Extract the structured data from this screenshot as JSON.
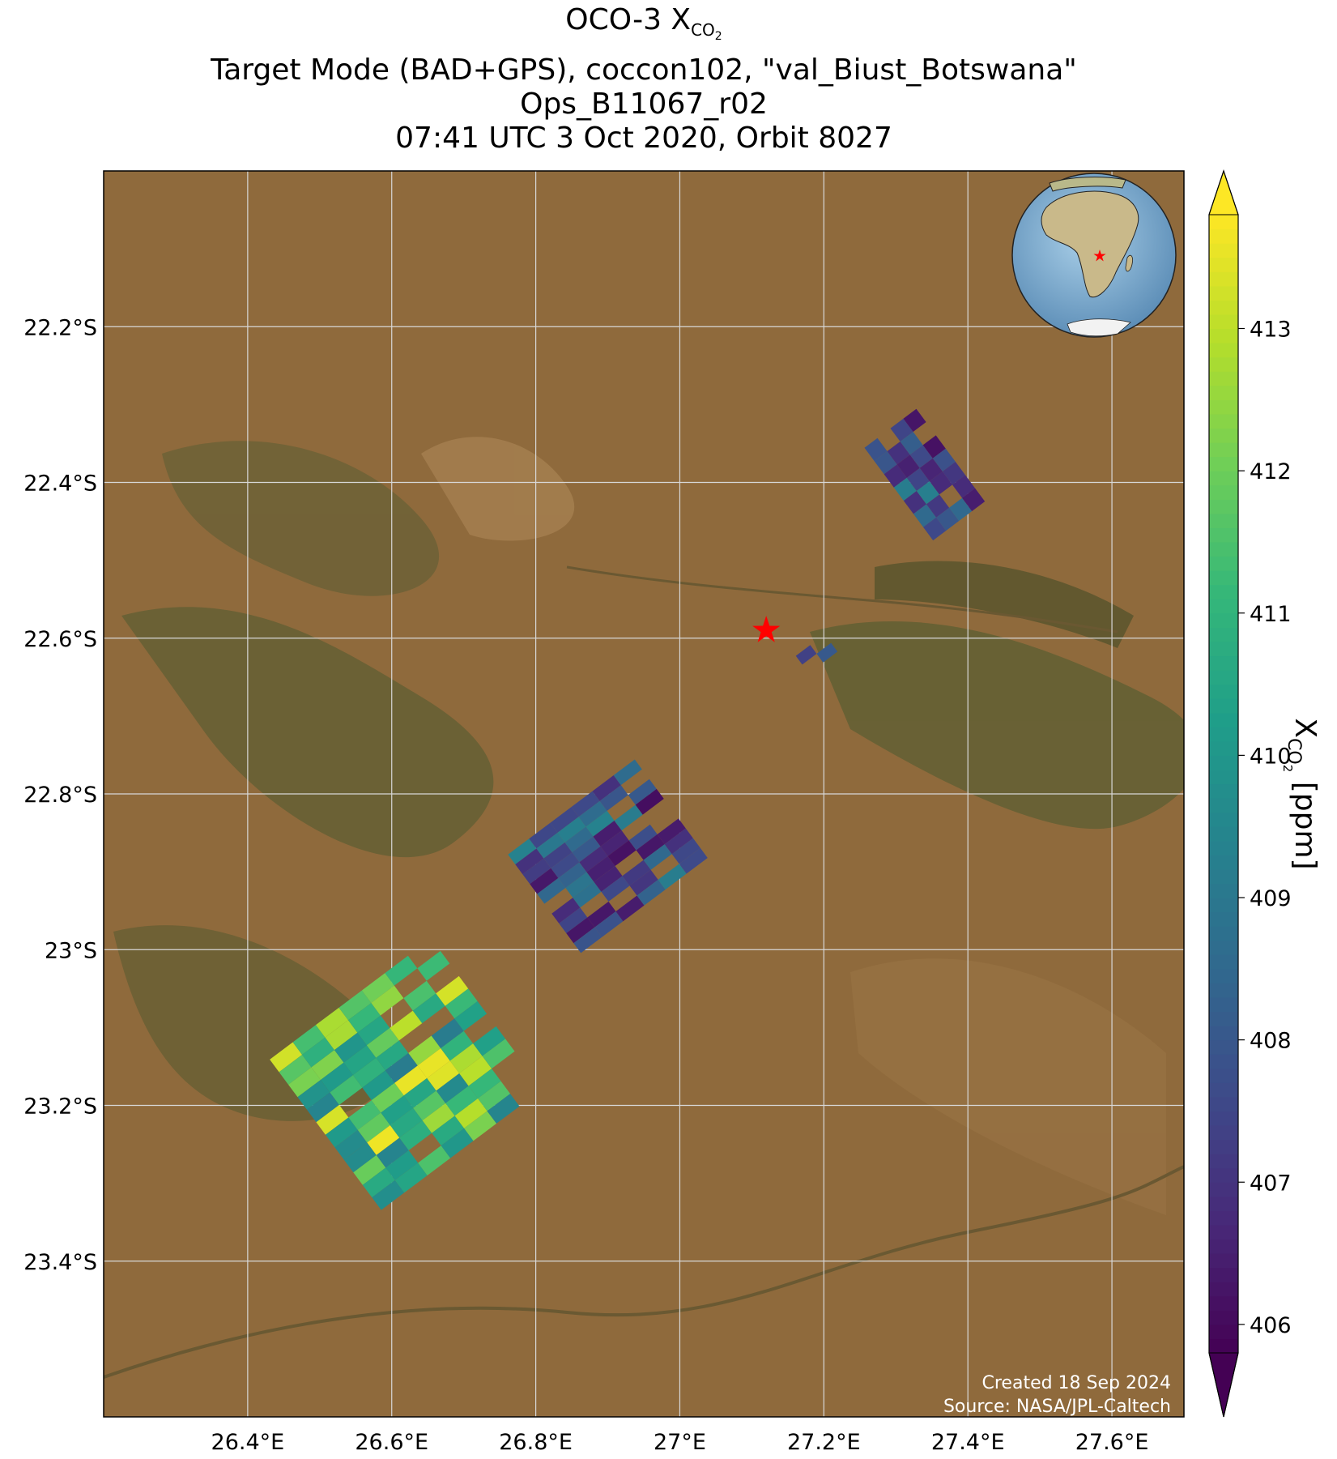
{
  "title": {
    "line1_prefix": "OCO-3 X",
    "line1_sub": "CO",
    "line1_sub2": "2",
    "line2": "Target Mode (BAD+GPS), coccon102, \"val_Biust_Botswana\"",
    "line3": "Ops_B11067_r02",
    "line4": "07:41 UTC 3 Oct 2020, Orbit 8027"
  },
  "map": {
    "lon_range": [
      26.2,
      27.7
    ],
    "lat_range": [
      -23.6,
      -22.0
    ],
    "lon_ticks": [
      {
        "value": 26.4,
        "label": "26.4°E"
      },
      {
        "value": 26.6,
        "label": "26.6°E"
      },
      {
        "value": 26.8,
        "label": "26.8°E"
      },
      {
        "value": 27.0,
        "label": "27°E"
      },
      {
        "value": 27.2,
        "label": "27.2°E"
      },
      {
        "value": 27.4,
        "label": "27.4°E"
      },
      {
        "value": 27.6,
        "label": "27.6°E"
      }
    ],
    "lat_ticks": [
      {
        "value": -22.2,
        "label": "22.2°S"
      },
      {
        "value": -22.4,
        "label": "22.4°S"
      },
      {
        "value": -22.6,
        "label": "22.6°S"
      },
      {
        "value": -22.8,
        "label": "22.8°S"
      },
      {
        "value": -23.0,
        "label": "23°S"
      },
      {
        "value": -23.2,
        "label": "23.2°S"
      },
      {
        "value": -23.4,
        "label": "23.4°S"
      }
    ],
    "target_site": {
      "name": "val_Biust_Botswana",
      "lon": 27.12,
      "lat": -22.59,
      "marker_color": "#ff0000"
    },
    "colors": {
      "basemap": "#8f6a3c",
      "grid": "#d8d8d8",
      "vegetation": "#55552e"
    },
    "soundings": [
      {
        "center_lon": 27.34,
        "center_lat": -22.39,
        "xco2_min": 406.0,
        "xco2_max": 409.3,
        "description": "northern swath segment"
      },
      {
        "center_lon": 27.19,
        "center_lat": -22.62,
        "xco2_min": 406.0,
        "xco2_max": 409.0,
        "description": "near-target segment"
      },
      {
        "center_lon": 26.9,
        "center_lat": -22.88,
        "xco2_min": 406.0,
        "xco2_max": 409.5,
        "description": "central swath segment"
      },
      {
        "center_lon": 26.62,
        "center_lat": -23.16,
        "xco2_min": 409.0,
        "xco2_max": 413.8,
        "description": "southern swath segment"
      }
    ],
    "credit_line1": "Created 18 Sep 2024",
    "credit_line2": "Source: NASA/JPL-Caltech"
  },
  "colorbar": {
    "range": [
      405.8,
      413.8
    ],
    "ticks": [
      406,
      407,
      408,
      409,
      410,
      411,
      412,
      413
    ],
    "label_prefix": "X",
    "label_sub": "CO",
    "label_sub2": "2",
    "label_suffix": " [ppm]",
    "extend": "both",
    "colormap": "viridis",
    "stops": [
      "#440154",
      "#482878",
      "#3e4989",
      "#31688e",
      "#26828e",
      "#1f9e89",
      "#35b779",
      "#6ece58",
      "#b5de2b",
      "#fde725"
    ]
  },
  "inset_globe": {
    "description": "orthographic globe centered on Africa",
    "ocean_color": "#86b3d6",
    "land_color": "#c8b98a",
    "site_marker_color": "#ff0000"
  }
}
